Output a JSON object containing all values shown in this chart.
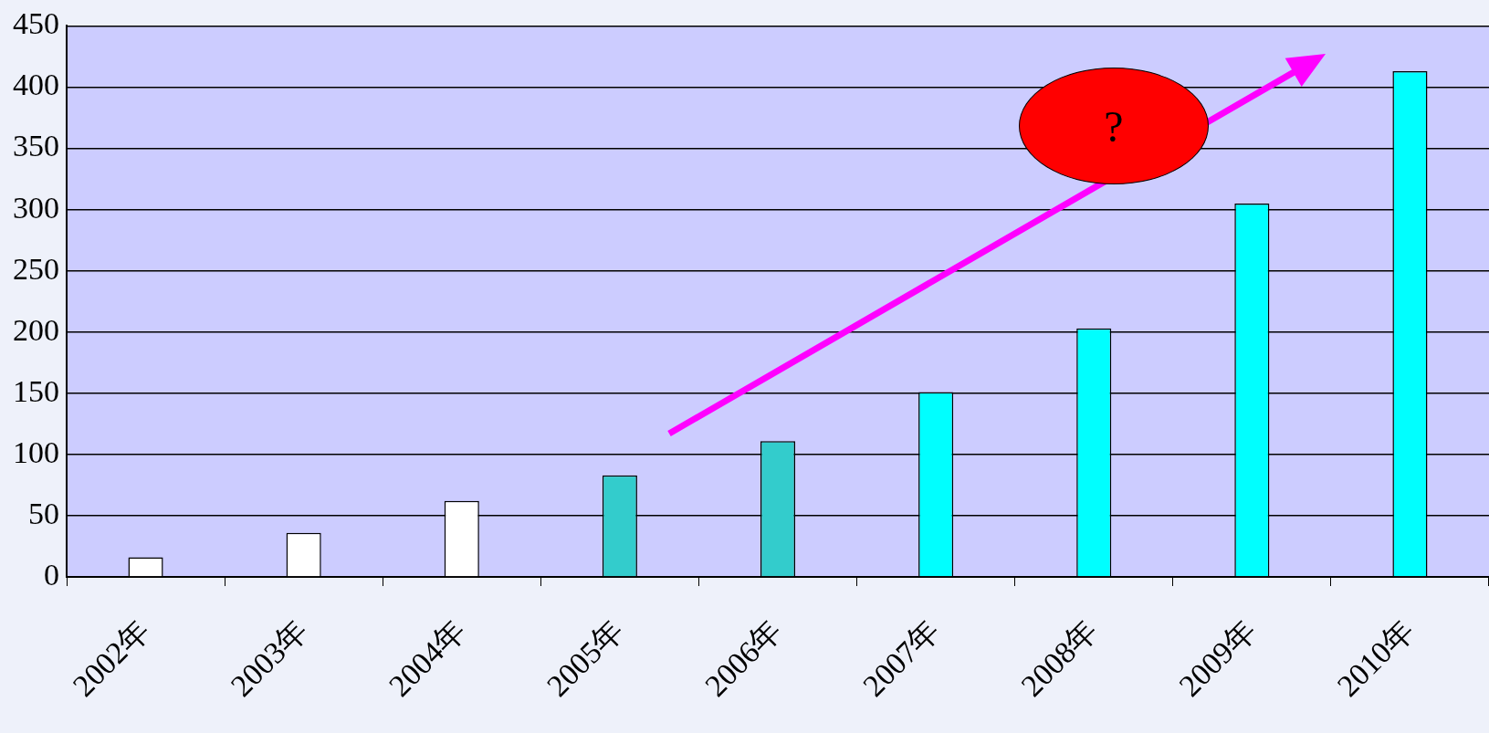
{
  "chart_data": {
    "type": "bar",
    "categories": [
      "2002年",
      "2003年",
      "2004年",
      "2005年",
      "2006年",
      "2007年",
      "2008年",
      "2009年",
      "2010年"
    ],
    "values": [
      16,
      36,
      62,
      83,
      111,
      151,
      203,
      305,
      413
    ],
    "colors": [
      "#ffffff",
      "#ffffff",
      "#ffffff",
      "#33cccc",
      "#33cccc",
      "#00ffff",
      "#00ffff",
      "#00ffff",
      "#00ffff"
    ],
    "ylim": [
      0,
      450
    ],
    "yticks": [
      0,
      50,
      100,
      150,
      200,
      250,
      300,
      350,
      400,
      450
    ],
    "grid": "y",
    "legend": false,
    "annotations": [
      "?"
    ]
  }
}
